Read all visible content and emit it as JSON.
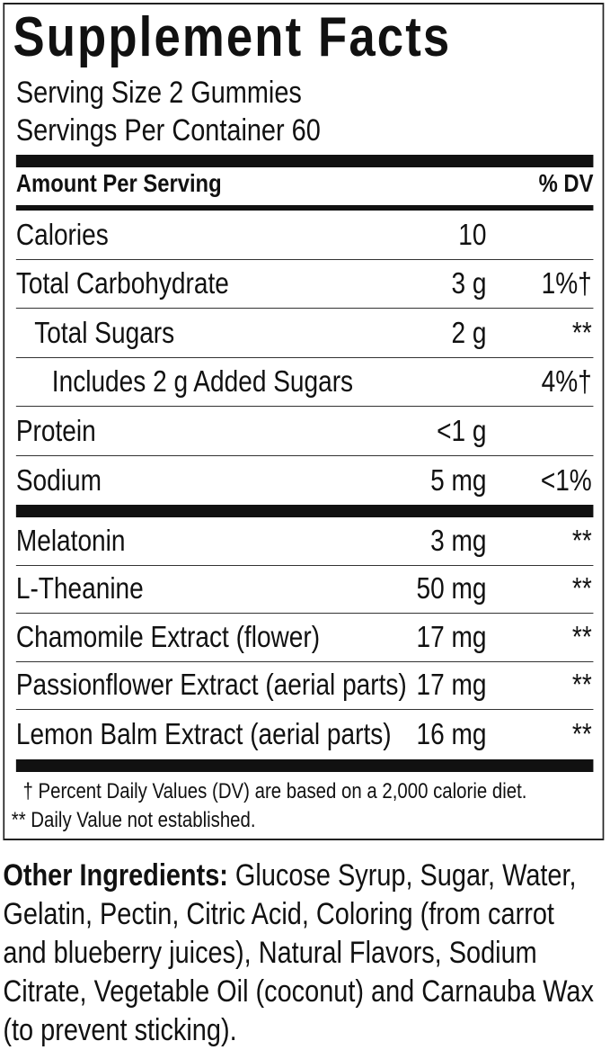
{
  "title": "Supplement Facts",
  "serving_size": "Serving Size 2 Gummies",
  "servings_per_container": "Servings Per Container 60",
  "header": {
    "amount": "Amount Per Serving",
    "dv": "% DV"
  },
  "nutrients": [
    {
      "name": "Calories",
      "amount": "10",
      "dv": ""
    },
    {
      "name": "Total Carbohydrate",
      "amount": "3 g",
      "dv": "1%†"
    },
    {
      "name": "Total Sugars",
      "amount": "2 g",
      "dv": "**"
    },
    {
      "name": "Includes 2 g Added Sugars",
      "amount": "",
      "dv": "4%†"
    },
    {
      "name": "Protein",
      "amount": "<1 g",
      "dv": ""
    },
    {
      "name": "Sodium",
      "amount": "5 mg",
      "dv": "<1%"
    }
  ],
  "ingredients": [
    {
      "name": "Melatonin",
      "amount": "3 mg",
      "dv": "**"
    },
    {
      "name": "L-Theanine",
      "amount": "50 mg",
      "dv": "**"
    },
    {
      "name": "Chamomile Extract (flower)",
      "amount": "17 mg",
      "dv": "**"
    },
    {
      "name": "Passionflower Extract (aerial parts)",
      "amount": "17 mg",
      "dv": "**"
    },
    {
      "name": "Lemon Balm Extract (aerial parts)",
      "amount": "16 mg",
      "dv": "**"
    }
  ],
  "footnotes": [
    "† Percent Daily Values (DV) are based on a 2,000 calorie diet.",
    "** Daily Value not established."
  ],
  "other_ingredients": {
    "label": "Other Ingredients:",
    "text": " Glucose Syrup, Sugar, Water, Gelatin, Pectin, Citric Acid, Coloring (from carrot and blueberry juices), Natural Flavors, Sodium Citrate, Vegetable Oil (coconut) and Carnauba Wax (to prevent sticking)."
  }
}
